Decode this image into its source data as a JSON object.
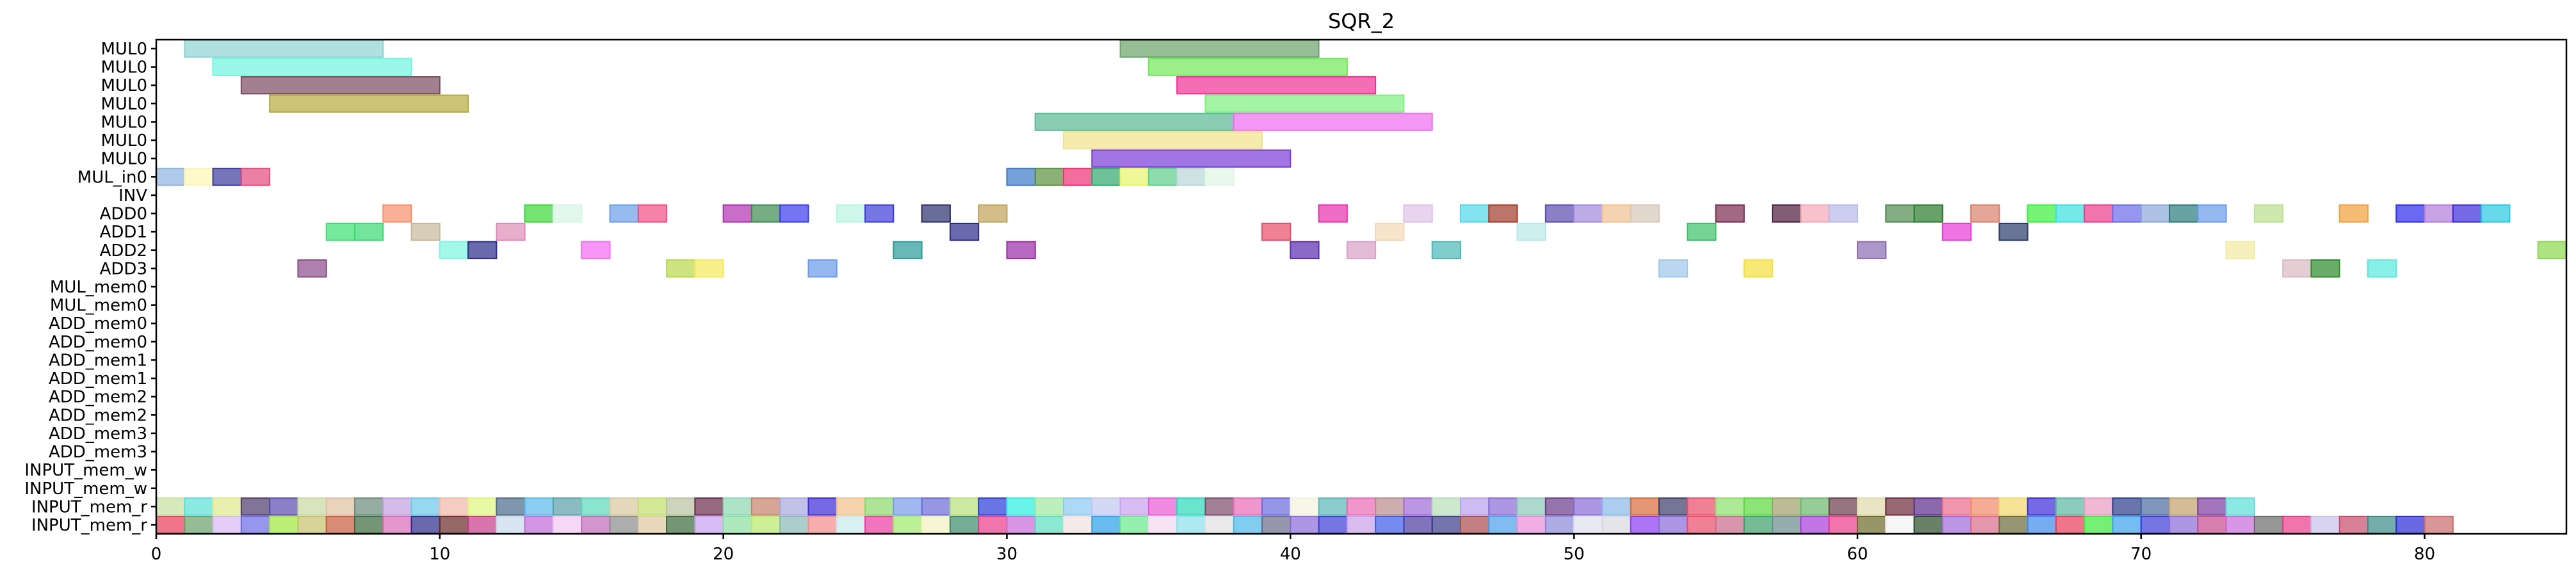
{
  "chart_data": {
    "type": "gantt",
    "title": "SQR_2",
    "xlim": [
      0,
      85
    ],
    "xticks": [
      0,
      10,
      20,
      30,
      40,
      50,
      60,
      70,
      80
    ],
    "rows": [
      "MUL0",
      "MUL0",
      "MUL0",
      "MUL0",
      "MUL0",
      "MUL0",
      "MUL0",
      "MUL_in0",
      "INV",
      "ADD0",
      "ADD1",
      "ADD2",
      "ADD3",
      "MUL_mem0",
      "MUL_mem0",
      "ADD_mem0",
      "ADD_mem0",
      "ADD_mem1",
      "ADD_mem1",
      "ADD_mem2",
      "ADD_mem2",
      "ADD_mem3",
      "ADD_mem3",
      "INPUT_mem_w",
      "INPUT_mem_w",
      "INPUT_mem_r",
      "INPUT_mem_r"
    ],
    "bars": [
      {
        "row": 0,
        "start": 1,
        "end": 8,
        "color": "#8fd3d3"
      },
      {
        "row": 0,
        "start": 34,
        "end": 41,
        "color": "#6aa36a"
      },
      {
        "row": 1,
        "start": 2,
        "end": 9,
        "color": "#6ff5e0"
      },
      {
        "row": 1,
        "start": 35,
        "end": 42,
        "color": "#6fe85a"
      },
      {
        "row": 2,
        "start": 3,
        "end": 10,
        "color": "#7a4a5e"
      },
      {
        "row": 2,
        "start": 36,
        "end": 43,
        "color": "#ef2f95"
      },
      {
        "row": 3,
        "start": 4,
        "end": 11,
        "color": "#b5ab3d"
      },
      {
        "row": 3,
        "start": 37,
        "end": 44,
        "color": "#7df07f"
      },
      {
        "row": 4,
        "start": 31,
        "end": 38,
        "color": "#58b894"
      },
      {
        "row": 4,
        "start": 38,
        "end": 45,
        "color": "#ee6cf0"
      },
      {
        "row": 5,
        "start": 32,
        "end": 39,
        "color": "#f0e38a"
      },
      {
        "row": 6,
        "start": 33,
        "end": 40,
        "color": "#7a3ad8"
      },
      {
        "row": 7,
        "start": 0,
        "end": 1,
        "color": "#8fb3e0"
      },
      {
        "row": 7,
        "start": 1,
        "end": 2,
        "color": "#fdf5b5"
      },
      {
        "row": 7,
        "start": 2,
        "end": 3,
        "color": "#3a3a9d"
      },
      {
        "row": 7,
        "start": 3,
        "end": 4,
        "color": "#e24a7f"
      },
      {
        "row": 7,
        "start": 30,
        "end": 31,
        "color": "#3a78c8"
      },
      {
        "row": 7,
        "start": 31,
        "end": 32,
        "color": "#5b8f3e"
      },
      {
        "row": 7,
        "start": 32,
        "end": 33,
        "color": "#ee2f74"
      },
      {
        "row": 7,
        "start": 33,
        "end": 34,
        "color": "#2fa86b"
      },
      {
        "row": 7,
        "start": 34,
        "end": 35,
        "color": "#e6f56a"
      },
      {
        "row": 7,
        "start": 35,
        "end": 36,
        "color": "#5fcf8a"
      },
      {
        "row": 7,
        "start": 36,
        "end": 37,
        "color": "#b8d6d6"
      },
      {
        "row": 7,
        "start": 37,
        "end": 38,
        "color": "#e0f5e6"
      },
      {
        "row": 9,
        "start": 8,
        "end": 9,
        "color": "#f5906b"
      },
      {
        "row": 9,
        "start": 13,
        "end": 14,
        "color": "#3ad838"
      },
      {
        "row": 9,
        "start": 14,
        "end": 15,
        "color": "#d6f5e6"
      },
      {
        "row": 9,
        "start": 16,
        "end": 17,
        "color": "#6a9ee8"
      },
      {
        "row": 9,
        "start": 17,
        "end": 18,
        "color": "#f24d86"
      },
      {
        "row": 9,
        "start": 20,
        "end": 21,
        "color": "#b02fb0"
      },
      {
        "row": 9,
        "start": 21,
        "end": 22,
        "color": "#3d8a4f"
      },
      {
        "row": 9,
        "start": 22,
        "end": 23,
        "color": "#3a3af0"
      },
      {
        "row": 9,
        "start": 24,
        "end": 25,
        "color": "#b8f5e0"
      },
      {
        "row": 9,
        "start": 25,
        "end": 26,
        "color": "#3a3ad8"
      },
      {
        "row": 9,
        "start": 27,
        "end": 28,
        "color": "#2a2f6b"
      },
      {
        "row": 9,
        "start": 29,
        "end": 30,
        "color": "#c0a25a"
      },
      {
        "row": 9,
        "start": 41,
        "end": 42,
        "color": "#ea2fae"
      },
      {
        "row": 9,
        "start": 44,
        "end": 45,
        "color": "#dfc0ea"
      },
      {
        "row": 9,
        "start": 46,
        "end": 47,
        "color": "#4fd8ea"
      },
      {
        "row": 9,
        "start": 47,
        "end": 48,
        "color": "#a33a2a"
      },
      {
        "row": 9,
        "start": 49,
        "end": 50,
        "color": "#5a4ab0"
      },
      {
        "row": 9,
        "start": 50,
        "end": 51,
        "color": "#a08ae0"
      },
      {
        "row": 9,
        "start": 51,
        "end": 52,
        "color": "#f2c08f"
      },
      {
        "row": 9,
        "start": 52,
        "end": 53,
        "color": "#d6c8b8"
      },
      {
        "row": 9,
        "start": 55,
        "end": 56,
        "color": "#7a2a4f"
      },
      {
        "row": 9,
        "start": 57,
        "end": 58,
        "color": "#4a1a3a"
      },
      {
        "row": 9,
        "start": 58,
        "end": 59,
        "color": "#f5a8b8"
      },
      {
        "row": 9,
        "start": 59,
        "end": 60,
        "color": "#b8b8ea"
      },
      {
        "row": 9,
        "start": 61,
        "end": 62,
        "color": "#4f8a4f"
      },
      {
        "row": 9,
        "start": 62,
        "end": 63,
        "color": "#2a7a2a"
      },
      {
        "row": 9,
        "start": 64,
        "end": 65,
        "color": "#d8806a"
      },
      {
        "row": 9,
        "start": 66,
        "end": 67,
        "color": "#3af03a"
      },
      {
        "row": 9,
        "start": 67,
        "end": 68,
        "color": "#3ae0e0"
      },
      {
        "row": 9,
        "start": 68,
        "end": 69,
        "color": "#ea3a8a"
      },
      {
        "row": 9,
        "start": 69,
        "end": 70,
        "color": "#6a6ae8"
      },
      {
        "row": 9,
        "start": 70,
        "end": 71,
        "color": "#8aa8d8"
      },
      {
        "row": 9,
        "start": 71,
        "end": 72,
        "color": "#2a7a7a"
      },
      {
        "row": 9,
        "start": 72,
        "end": 73,
        "color": "#6a9aea"
      },
      {
        "row": 9,
        "start": 74,
        "end": 75,
        "color": "#b8e08f"
      },
      {
        "row": 9,
        "start": 77,
        "end": 78,
        "color": "#f2a03a"
      },
      {
        "row": 9,
        "start": 79,
        "end": 80,
        "color": "#2a2af0"
      },
      {
        "row": 9,
        "start": 80,
        "end": 81,
        "color": "#b07ad8"
      },
      {
        "row": 9,
        "start": 81,
        "end": 82,
        "color": "#3a2ad8"
      },
      {
        "row": 9,
        "start": 82,
        "end": 83,
        "color": "#2ac8e0"
      },
      {
        "row": 10,
        "start": 6,
        "end": 7,
        "color": "#3ae070"
      },
      {
        "row": 10,
        "start": 7,
        "end": 8,
        "color": "#3ad870"
      },
      {
        "row": 10,
        "start": 9,
        "end": 10,
        "color": "#c8b89a"
      },
      {
        "row": 10,
        "start": 12,
        "end": 13,
        "color": "#e08ab8"
      },
      {
        "row": 10,
        "start": 28,
        "end": 29,
        "color": "#2a2a8a"
      },
      {
        "row": 10,
        "start": 39,
        "end": 40,
        "color": "#ea4a6a"
      },
      {
        "row": 10,
        "start": 43,
        "end": 44,
        "color": "#f2d8b8"
      },
      {
        "row": 10,
        "start": 48,
        "end": 49,
        "color": "#b8e8ea"
      },
      {
        "row": 10,
        "start": 54,
        "end": 55,
        "color": "#3ac06a"
      },
      {
        "row": 10,
        "start": 63,
        "end": 64,
        "color": "#ea3ad8"
      },
      {
        "row": 10,
        "start": 65,
        "end": 66,
        "color": "#2a3a6a"
      },
      {
        "row": 11,
        "start": 10,
        "end": 11,
        "color": "#7af5e0"
      },
      {
        "row": 11,
        "start": 11,
        "end": 12,
        "color": "#2a2a8a"
      },
      {
        "row": 11,
        "start": 15,
        "end": 16,
        "color": "#f56af5"
      },
      {
        "row": 11,
        "start": 26,
        "end": 27,
        "color": "#2a9a9a"
      },
      {
        "row": 11,
        "start": 30,
        "end": 31,
        "color": "#9a2aa8"
      },
      {
        "row": 11,
        "start": 40,
        "end": 41,
        "color": "#5a2ab0"
      },
      {
        "row": 11,
        "start": 42,
        "end": 43,
        "color": "#d8a0c8"
      },
      {
        "row": 11,
        "start": 45,
        "end": 46,
        "color": "#4ab8b8"
      },
      {
        "row": 11,
        "start": 60,
        "end": 61,
        "color": "#8a6ab0"
      },
      {
        "row": 11,
        "start": 73,
        "end": 74,
        "color": "#f2eaa0"
      },
      {
        "row": 11,
        "start": 84,
        "end": 85,
        "color": "#8ad84a"
      },
      {
        "row": 12,
        "start": 5,
        "end": 6,
        "color": "#8a4a8a"
      },
      {
        "row": 12,
        "start": 18,
        "end": 19,
        "color": "#b8d84a"
      },
      {
        "row": 12,
        "start": 19,
        "end": 20,
        "color": "#f5ea5a"
      },
      {
        "row": 12,
        "start": 23,
        "end": 24,
        "color": "#6a9aea"
      },
      {
        "row": 12,
        "start": 53,
        "end": 54,
        "color": "#a0c8ea"
      },
      {
        "row": 12,
        "start": 56,
        "end": 57,
        "color": "#f2e03a"
      },
      {
        "row": 12,
        "start": 75,
        "end": 76,
        "color": "#d8b8c0"
      },
      {
        "row": 12,
        "start": 76,
        "end": 77,
        "color": "#2a8a2a"
      },
      {
        "row": 12,
        "start": 78,
        "end": 79,
        "color": "#5ae8e0"
      },
      {
        "row": 12,
        "start": 85,
        "end": 86,
        "color": "#6ae03a"
      }
    ],
    "input_rows": {
      "row25_colors": [
        "#c8e0a0",
        "#5ae0d8",
        "#e0ea8a",
        "#4a3a6a",
        "#5a4ab0",
        "#c8d8a0",
        "#e0c0a0",
        "#6a8a7a",
        "#c0a0e0",
        "#6ac8ea",
        "#f2b8a8",
        "#e0f57a",
        "#4a6a8a",
        "#5ab8ea",
        "#5aa0a8",
        "#5ad8b8",
        "#d8c8a0",
        "#c0e06a",
        "#b8c0a0",
        "#6a2a4a",
        "#8ad8b0",
        "#c8806a",
        "#a8a8e0",
        "#3a2ad8",
        "#f2c08a",
        "#8ad86a",
        "#7a9aea",
        "#6a6ad8",
        "#b8e07a",
        "#2a3ad8",
        "#2af0e0",
        "#a0e8a0",
        "#8ac8f2",
        "#c0c8f0",
        "#c8a0f0",
        "#ea5ad8",
        "#2ad8b8",
        "#7a4a6a",
        "#ea6ab8",
        "#6a6ae0",
        "#f2f2e0",
        "#5ab8b8",
        "#ea6ab8",
        "#b88a8a",
        "#a06ad8",
        "#b8e0b8",
        "#b8a0f0",
        "#8a6ad8",
        "#8ac8b8",
        "#6a3a8a",
        "#8a6ad8",
        "#8ab8ea",
        "#d86a3a",
        "#3a3a6a",
        "#ea4a6a",
        "#8ae06a",
        "#5ad83a",
        "#a0a06a",
        "#6ab86a",
        "#6a3a4a",
        "#e0d8a8",
        "#6a2a3a",
        "#5a2a8a",
        "#ea6a8a",
        "#f28a6a",
        "#f2d86a",
        "#3a2ad8",
        "#5ab8a0",
        "#ea9ac0",
        "#2a3a8a",
        "#4a6aa0",
        "#c0a06a",
        "#7a3aa0",
        "#5ae0d8"
      ],
      "row26_colors": [
        "#ea3a5a",
        "#6aa06a",
        "#d8b8f2",
        "#6a6ae8",
        "#a0ea3a",
        "#c8c06a",
        "#c85a3a",
        "#3a6a3a",
        "#d86ab8",
        "#2a2a8a",
        "#6a2a2a",
        "#c83a8a",
        "#c8d8ea",
        "#c06ad8",
        "#f2c8f2",
        "#c06ab8",
        "#8a8a8a",
        "#e0c8a0",
        "#3a6a3a",
        "#c8a0f2",
        "#8ae0a0",
        "#b8ea6a",
        "#8ab8b8",
        "#f28a8a",
        "#c8eaea",
        "#ea3aa0",
        "#a0ea6a",
        "#f2f2c0",
        "#3a8a6a",
        "#ea3a8a",
        "#c86ad8",
        "#5ae0c0",
        "#f2e0e0",
        "#2aa0ea",
        "#6aea8a",
        "#f2d8f2",
        "#8ae0ea",
        "#e0e0e0",
        "#4ab8ea",
        "#6a6a8a",
        "#8a6ad8",
        "#3a3ad8",
        "#c8a0ea",
        "#3a5aea",
        "#4a3aa0",
        "#3a3a8a",
        "#a84a4a",
        "#4aa0ea",
        "#ea8ad8",
        "#8a8ad8",
        "#e0e0f2",
        "#d8d8e0",
        "#8a3af2",
        "#8a6ad8",
        "#ea4a6a",
        "#c86a8a",
        "#3aa06a",
        "#6a8a8a",
        "#a83ad8",
        "#ea3a8a",
        "#6a6a2a",
        "#f2f2f2",
        "#2a4a2a",
        "#a06ad8",
        "#d86a8a",
        "#6a6a3a",
        "#3a8aea",
        "#ea3a5a",
        "#3aea3a",
        "#3aa0ea",
        "#3a3ad8",
        "#8a6ad8",
        "#c84a8a",
        "#c86ad8",
        "#6a6a6a",
        "#ea3a8a",
        "#c8c0ea",
        "#c84a6a",
        "#3a8a8a",
        "#2a2ad8",
        "#c86a6a"
      ]
    }
  }
}
